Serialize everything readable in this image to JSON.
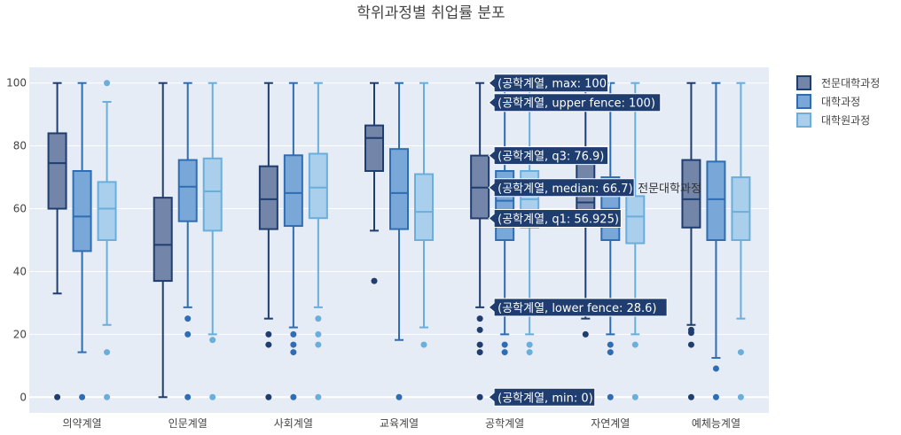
{
  "chart_data": {
    "type": "box",
    "title": "학위과정별 취업률 분포",
    "xlabel": "",
    "ylabel": "",
    "ylim": [
      -5,
      105
    ],
    "yticks": [
      0,
      20,
      40,
      60,
      80,
      100
    ],
    "grid": true,
    "legend_position": "top-right",
    "categories": [
      "의약계열",
      "인문계열",
      "사회계열",
      "교육계열",
      "공학계열",
      "자연계열",
      "예체능계열"
    ],
    "series": [
      {
        "name": "전문대학과정",
        "color": "#1f3d6e",
        "fill": "#7385a8",
        "boxes": [
          {
            "min": 33,
            "q1": 60,
            "median": 74.5,
            "q3": 84,
            "max": 100,
            "outliers": [
              0
            ]
          },
          {
            "min": 0,
            "q1": 37,
            "median": 48.5,
            "q3": 63.5,
            "max": 100,
            "outliers": []
          },
          {
            "min": 25,
            "q1": 53.5,
            "median": 63,
            "q3": 73.5,
            "max": 100,
            "outliers": [
              0,
              16.7,
              20
            ]
          },
          {
            "min": 53,
            "q1": 72,
            "median": 82.5,
            "q3": 86.5,
            "max": 100,
            "outliers": [
              37
            ]
          },
          {
            "min": 28.6,
            "q1": 56.925,
            "median": 66.7,
            "q3": 76.9,
            "max": 100,
            "outliers": [
              0,
              14.3,
              16.7,
              21.4,
              25
            ]
          },
          {
            "min": 25,
            "q1": 55,
            "median": 62,
            "q3": 75,
            "max": 100,
            "outliers": [
              20
            ]
          },
          {
            "min": 23,
            "q1": 54,
            "median": 63,
            "q3": 75.5,
            "max": 100,
            "outliers": [
              0,
              16.7,
              20.5,
              21.4
            ]
          }
        ]
      },
      {
        "name": "대학과정",
        "color": "#2e6db4",
        "fill": "#79a8d8",
        "boxes": [
          {
            "min": 14.3,
            "q1": 46.5,
            "median": 57.5,
            "q3": 72,
            "max": 100,
            "outliers": [
              0
            ]
          },
          {
            "min": 28.6,
            "q1": 56,
            "median": 67,
            "q3": 75.5,
            "max": 100,
            "outliers": [
              0,
              20,
              25
            ]
          },
          {
            "min": 22.2,
            "q1": 54.5,
            "median": 65,
            "q3": 77,
            "max": 100,
            "outliers": [
              0,
              14.3,
              16.7,
              20
            ]
          },
          {
            "min": 18.2,
            "q1": 53.5,
            "median": 65,
            "q3": 79,
            "max": 100,
            "outliers": [
              0
            ]
          },
          {
            "min": 20,
            "q1": 50,
            "median": 62.5,
            "q3": 72,
            "max": 100,
            "outliers": [
              0,
              14.3,
              16.7
            ]
          },
          {
            "min": 20,
            "q1": 50,
            "median": 60,
            "q3": 70,
            "max": 100,
            "outliers": [
              0,
              14.3,
              16.7
            ]
          },
          {
            "min": 12.5,
            "q1": 50,
            "median": 63,
            "q3": 75,
            "max": 100,
            "outliers": [
              0,
              9.1
            ]
          }
        ]
      },
      {
        "name": "대학원과정",
        "color": "#6aaedb",
        "fill": "#a9cfec",
        "boxes": [
          {
            "min": 23,
            "q1": 50,
            "median": 60,
            "q3": 68.5,
            "max": 94,
            "outliers": [
              0,
              14.3,
              100
            ]
          },
          {
            "min": 20,
            "q1": 53,
            "median": 65.5,
            "q3": 76,
            "max": 100,
            "outliers": [
              0,
              18.2
            ]
          },
          {
            "min": 28.6,
            "q1": 57,
            "median": 66.7,
            "q3": 77.5,
            "max": 100,
            "outliers": [
              0,
              16.7,
              20,
              25
            ]
          },
          {
            "min": 22.2,
            "q1": 50,
            "median": 59,
            "q3": 71,
            "max": 100,
            "outliers": [
              16.7
            ]
          },
          {
            "min": 20,
            "q1": 54,
            "median": 63,
            "q3": 72,
            "max": 100,
            "outliers": [
              0,
              14.3,
              16.7
            ]
          },
          {
            "min": 20,
            "q1": 49,
            "median": 57.5,
            "q3": 64,
            "max": 100,
            "outliers": [
              0,
              16.7
            ]
          },
          {
            "min": 25,
            "q1": 50,
            "median": 59,
            "q3": 70,
            "max": 100,
            "outliers": [
              0,
              14.3
            ]
          }
        ]
      }
    ],
    "hover": {
      "category": "공학계열",
      "series_label": "전문대학과정",
      "labels": [
        {
          "text": "(공학계열, max: 100)",
          "value": 100
        },
        {
          "text": "(공학계열, upper fence: 100)",
          "value": 100
        },
        {
          "text": "(공학계열, q3: 76.9)",
          "value": 76.9
        },
        {
          "text": "(공학계열, median: 66.7)",
          "value": 66.7
        },
        {
          "text": "(공학계열, q1: 56.925)",
          "value": 56.925
        },
        {
          "text": "(공학계열, lower fence: 28.6)",
          "value": 28.6
        },
        {
          "text": "(공학계열, min: 0)",
          "value": 0
        }
      ]
    }
  }
}
